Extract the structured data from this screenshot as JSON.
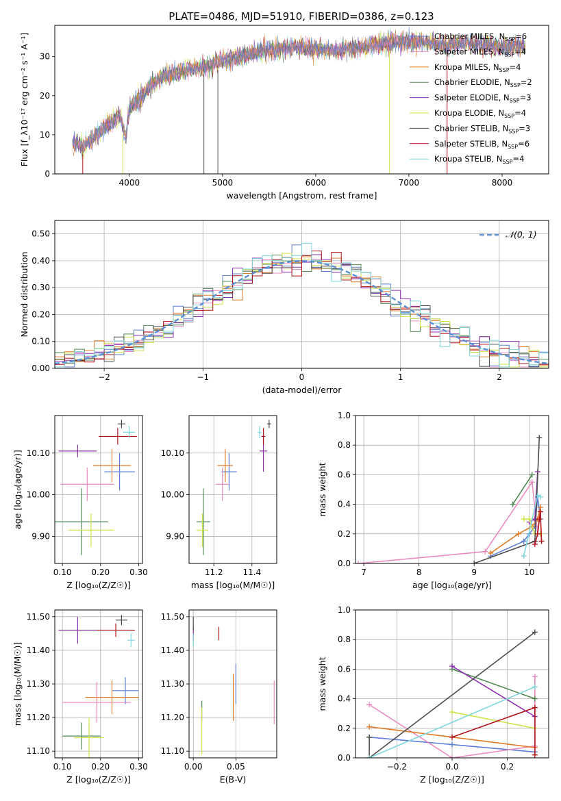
{
  "figure": {
    "title": "PLATE=0486, MJD=51910, FIBERID=0386, z=0.123"
  },
  "colors": {
    "Chabrier MILES": "#5b7fd6",
    "Salpeter MILES": "#e88cc0",
    "Kroupa MILES": "#e07b28",
    "Chabrier ELODIE": "#4f8a52",
    "Salpeter ELODIE": "#8f2fb0",
    "Kroupa ELODIE": "#cde34a",
    "Chabrier STELIB": "#4d4d4d",
    "Salpeter STELIB": "#b0151a",
    "Kroupa STELIB": "#7fd8de",
    "normal_curve": "#5b8fd6"
  },
  "chart_data": [
    {
      "id": "spectrum",
      "type": "line",
      "xlabel": "wavelength [Angstrom, rest frame]",
      "ylabel": "Flux [f_λ10⁻¹⁷ erg cm⁻² s⁻¹ A⁻¹]",
      "xlim": [
        3200,
        8500
      ],
      "ylim": [
        0,
        38
      ],
      "xticks": [
        4000,
        5000,
        6000,
        7000,
        8000
      ],
      "yticks": [
        0,
        10,
        20,
        30
      ],
      "grid": false,
      "legend_position": "right",
      "legend": [
        {
          "name": "Chabrier MILES",
          "nssp": "6"
        },
        {
          "name": "Salpeter MILES",
          "nssp": "4"
        },
        {
          "name": "Kroupa MILES",
          "nssp": "4"
        },
        {
          "name": "Chabrier ELODIE",
          "nssp": "2"
        },
        {
          "name": "Salpeter ELODIE",
          "nssp": "3"
        },
        {
          "name": "Kroupa ELODIE",
          "nssp": "4"
        },
        {
          "name": "Chabrier STELIB",
          "nssp": "3"
        },
        {
          "name": "Salpeter STELIB",
          "nssp": "6"
        },
        {
          "name": "Kroupa STELIB",
          "nssp": "4"
        }
      ],
      "continuum": {
        "x": [
          3390,
          3500,
          3600,
          3700,
          3800,
          3900,
          3960,
          4000,
          4100,
          4200,
          4300,
          4400,
          4500,
          4700,
          4900,
          5000,
          5200,
          5400,
          5600,
          5800,
          6000,
          6200,
          6400,
          6600,
          6800,
          7000,
          7200,
          7400,
          7600,
          7800,
          8000,
          8250
        ],
        "y": [
          8,
          7,
          9,
          11,
          13,
          15,
          9,
          17,
          19,
          22,
          24,
          25,
          26,
          27,
          28,
          29,
          30,
          31.5,
          32,
          32.5,
          32,
          31.5,
          32,
          33,
          33.5,
          34,
          33.5,
          33,
          33.5,
          33,
          32.5,
          33
        ]
      }
    },
    {
      "id": "residuals",
      "type": "bar",
      "xlabel": "(data-model)/error",
      "ylabel": "Normed distribution",
      "xlim": [
        -2.5,
        2.5
      ],
      "ylim": [
        0,
        0.55
      ],
      "xticks": [
        -2,
        -1,
        0,
        1,
        2
      ],
      "yticks": [
        0.0,
        0.1,
        0.2,
        0.3,
        0.4,
        0.5
      ],
      "grid": true,
      "bin_width": 0.1,
      "legend_position": "top-right",
      "legend_label": "𝒩(0, 1)",
      "normal": {
        "mean": 0,
        "sigma": 1
      }
    },
    {
      "id": "age_vs_Z",
      "type": "scatter",
      "xlabel": "Z [log₁₀(Z/Z☉)]",
      "ylabel": "age  [log₁₀(age/yr)]",
      "xlim": [
        0.08,
        0.31
      ],
      "ylim": [
        9.835,
        10.19
      ],
      "xticks": [
        0.1,
        0.2,
        0.3
      ],
      "yticks": [
        9.9,
        10.0,
        10.1
      ],
      "grid": true,
      "points": [
        {
          "model": "Chabrier MILES",
          "x": 0.25,
          "y": 10.055,
          "xerr": 0.04,
          "yerr": 0.045
        },
        {
          "model": "Salpeter MILES",
          "x": 0.165,
          "y": 10.025,
          "xerr": 0.07,
          "yerr": 0.04
        },
        {
          "model": "Kroupa MILES",
          "x": 0.23,
          "y": 10.07,
          "xerr": 0.05,
          "yerr": 0.04
        },
        {
          "model": "Chabrier ELODIE",
          "x": 0.15,
          "y": 9.935,
          "xerr": 0.07,
          "yerr": 0.08
        },
        {
          "model": "Salpeter ELODIE",
          "x": 0.14,
          "y": 10.105,
          "xerr": 0.05,
          "yerr": 0.015
        },
        {
          "model": "Kroupa ELODIE",
          "x": 0.175,
          "y": 9.915,
          "xerr": 0.06,
          "yerr": 0.04
        },
        {
          "model": "Chabrier STELIB",
          "x": 0.255,
          "y": 10.17,
          "xerr": 0.01,
          "yerr": 0.01
        },
        {
          "model": "Salpeter STELIB",
          "x": 0.245,
          "y": 10.14,
          "xerr": 0.05,
          "yerr": 0.02
        },
        {
          "model": "Kroupa STELIB",
          "x": 0.275,
          "y": 10.15,
          "xerr": 0.015,
          "yerr": 0.015
        }
      ]
    },
    {
      "id": "age_vs_mass",
      "type": "scatter",
      "xlabel": "mass [log₁₀(M/M☉)]",
      "ylabel": "",
      "xlim": [
        11.07,
        11.53
      ],
      "ylim": [
        9.835,
        10.19
      ],
      "xticks": [
        11.2,
        11.4
      ],
      "yticks": [
        9.9,
        10.0,
        10.1
      ],
      "grid": true,
      "points": [
        {
          "model": "Chabrier MILES",
          "x": 11.28,
          "y": 10.055,
          "xerr": 0.04,
          "yerr": 0.045
        },
        {
          "model": "Salpeter MILES",
          "x": 11.245,
          "y": 10.025,
          "xerr": 0.035,
          "yerr": 0.04
        },
        {
          "model": "Kroupa MILES",
          "x": 11.26,
          "y": 10.07,
          "xerr": 0.04,
          "yerr": 0.04
        },
        {
          "model": "Chabrier ELODIE",
          "x": 11.145,
          "y": 9.935,
          "xerr": 0.035,
          "yerr": 0.08
        },
        {
          "model": "Salpeter ELODIE",
          "x": 11.46,
          "y": 10.105,
          "xerr": 0.02,
          "yerr": 0.05
        },
        {
          "model": "Kroupa ELODIE",
          "x": 11.14,
          "y": 9.915,
          "xerr": 0.03,
          "yerr": 0.04
        },
        {
          "model": "Chabrier STELIB",
          "x": 11.49,
          "y": 10.17,
          "xerr": 0.01,
          "yerr": 0.01
        },
        {
          "model": "Salpeter STELIB",
          "x": 11.46,
          "y": 10.14,
          "xerr": 0.01,
          "yerr": 0.02
        },
        {
          "model": "Kroupa STELIB",
          "x": 11.44,
          "y": 10.15,
          "xerr": 0.01,
          "yerr": 0.015
        }
      ]
    },
    {
      "id": "weight_vs_age",
      "type": "line",
      "xlabel": "age  [log₁₀(age/yr)]",
      "ylabel": "mass weight",
      "xlim": [
        6.85,
        10.35
      ],
      "ylim": [
        0,
        1
      ],
      "xticks": [
        7,
        8,
        9,
        10
      ],
      "yticks": [
        0.0,
        0.2,
        0.4,
        0.6,
        0.8,
        1.0
      ],
      "grid": true,
      "series": [
        {
          "model": "Chabrier MILES",
          "x": [
            9.3,
            9.9,
            10.0,
            10.1,
            10.15,
            10.2
          ],
          "y": [
            0.05,
            0.15,
            0.2,
            0.25,
            0.45,
            0.3
          ]
        },
        {
          "model": "Salpeter MILES",
          "x": [
            6.9,
            9.2,
            10.05,
            10.15,
            10.2
          ],
          "y": [
            0.0,
            0.08,
            0.55,
            0.2,
            0.35
          ]
        },
        {
          "model": "Kroupa MILES",
          "x": [
            9.3,
            9.8,
            10.05,
            10.15,
            10.2
          ],
          "y": [
            0.07,
            0.2,
            0.25,
            0.3,
            0.38
          ]
        },
        {
          "model": "Chabrier ELODIE",
          "x": [
            9.7,
            10.05
          ],
          "y": [
            0.4,
            0.6
          ]
        },
        {
          "model": "Salpeter ELODIE",
          "x": [
            10.0,
            10.1,
            10.15
          ],
          "y": [
            0.28,
            0.3,
            0.62
          ]
        },
        {
          "model": "Kroupa ELODIE",
          "x": [
            9.9,
            10.0,
            10.1,
            10.2
          ],
          "y": [
            0.3,
            0.3,
            0.2,
            0.2
          ]
        },
        {
          "model": "Chabrier STELIB",
          "x": [
            9.0,
            10.1,
            10.18
          ],
          "y": [
            0.0,
            0.15,
            0.85
          ]
        },
        {
          "model": "Salpeter STELIB",
          "x": [
            10.1,
            10.15,
            10.18,
            10.2,
            10.22
          ],
          "y": [
            0.13,
            0.2,
            0.3,
            0.35,
            0.15
          ]
        },
        {
          "model": "Kroupa STELIB",
          "x": [
            9.9,
            10.15,
            10.2
          ],
          "y": [
            0.05,
            0.46,
            0.45
          ]
        }
      ]
    },
    {
      "id": "mass_vs_Z",
      "type": "scatter",
      "xlabel": "Z [log₁₀(Z/Z☉)]",
      "ylabel": "mass [log₁₀(M/M☉)]",
      "xlim": [
        0.08,
        0.31
      ],
      "ylim": [
        11.08,
        11.52
      ],
      "xticks": [
        0.1,
        0.2,
        0.3
      ],
      "yticks": [
        11.1,
        11.2,
        11.3,
        11.4,
        11.5
      ],
      "grid": true,
      "points": [
        {
          "model": "Chabrier MILES",
          "x": 0.265,
          "y": 11.28,
          "xerr": 0.035,
          "yerr": 0.04
        },
        {
          "model": "Salpeter MILES",
          "x": 0.19,
          "y": 11.245,
          "xerr": 0.09,
          "yerr": 0.06
        },
        {
          "model": "Kroupa MILES",
          "x": 0.23,
          "y": 11.26,
          "xerr": 0.07,
          "yerr": 0.05
        },
        {
          "model": "Chabrier ELODIE",
          "x": 0.15,
          "y": 11.145,
          "xerr": 0.05,
          "yerr": 0.04
        },
        {
          "model": "Salpeter ELODIE",
          "x": 0.14,
          "y": 11.46,
          "xerr": 0.05,
          "yerr": 0.04
        },
        {
          "model": "Kroupa ELODIE",
          "x": 0.17,
          "y": 11.14,
          "xerr": 0.04,
          "yerr": 0.06
        },
        {
          "model": "Chabrier STELIB",
          "x": 0.255,
          "y": 11.49,
          "xerr": 0.015,
          "yerr": 0.015
        },
        {
          "model": "Salpeter STELIB",
          "x": 0.24,
          "y": 11.46,
          "xerr": 0.05,
          "yerr": 0.02
        },
        {
          "model": "Kroupa STELIB",
          "x": 0.28,
          "y": 11.43,
          "xerr": 0.01,
          "yerr": 0.02
        }
      ]
    },
    {
      "id": "mass_vs_EBV",
      "type": "scatter",
      "xlabel": "E(B-V)",
      "ylabel": "",
      "xlim": [
        -0.005,
        0.098
      ],
      "ylim": [
        11.08,
        11.52
      ],
      "xticks": [
        0.0,
        0.05
      ],
      "yticks": [
        11.1,
        11.2,
        11.3,
        11.4,
        11.5
      ],
      "grid": true,
      "points": [
        {
          "model": "Chabrier MILES",
          "x": 0.05,
          "y": 11.3,
          "xerr": 0,
          "yerr": 0.06
        },
        {
          "model": "Salpeter MILES",
          "x": 0.095,
          "y": 11.245,
          "xerr": 0,
          "yerr": 0.065
        },
        {
          "model": "Kroupa MILES",
          "x": 0.047,
          "y": 11.26,
          "xerr": 0,
          "yerr": 0.07
        },
        {
          "model": "Chabrier ELODIE",
          "x": 0.01,
          "y": 11.22,
          "xerr": 0,
          "yerr": 0.03
        },
        {
          "model": "Salpeter ELODIE",
          "x": 0.0,
          "y": 11.45,
          "xerr": 0,
          "yerr": 0.02
        },
        {
          "model": "Kroupa ELODIE",
          "x": 0.01,
          "y": 11.16,
          "xerr": 0,
          "yerr": 0.07
        },
        {
          "model": "Chabrier STELIB",
          "x": 0.0,
          "y": 11.48,
          "xerr": 0,
          "yerr": 0.02
        },
        {
          "model": "Salpeter STELIB",
          "x": 0.03,
          "y": 11.45,
          "xerr": 0,
          "yerr": 0.02
        },
        {
          "model": "Kroupa STELIB",
          "x": 0.0,
          "y": 11.43,
          "xerr": 0,
          "yerr": 0.02
        }
      ]
    },
    {
      "id": "weight_vs_Z",
      "type": "line",
      "xlabel": "Z [log₁₀(Z/Z☉)]",
      "ylabel": "mass weight",
      "xlim": [
        -0.35,
        0.35
      ],
      "ylim": [
        0,
        1
      ],
      "xticks": [
        -0.2,
        0.0,
        0.2
      ],
      "yticks": [
        0.0,
        0.2,
        0.4,
        0.6,
        0.8,
        1.0
      ],
      "grid": true,
      "series": [
        {
          "model": "Chabrier MILES",
          "x": [
            -0.3,
            0.0,
            0.3
          ],
          "y": [
            0.14,
            0.09,
            0.04
          ]
        },
        {
          "model": "Salpeter MILES",
          "x": [
            -0.3,
            0.0,
            0.3,
            0.3
          ],
          "y": [
            0.36,
            0.0,
            0.08,
            0.55
          ]
        },
        {
          "model": "Kroupa MILES",
          "x": [
            -0.3,
            0.3
          ],
          "y": [
            0.21,
            0.07
          ]
        },
        {
          "model": "Chabrier ELODIE",
          "x": [
            0.0,
            0.3
          ],
          "y": [
            0.6,
            0.4
          ]
        },
        {
          "model": "Salpeter ELODIE",
          "x": [
            0.0,
            0.3
          ],
          "y": [
            0.62,
            0.28
          ]
        },
        {
          "model": "Kroupa ELODIE",
          "x": [
            0.0,
            0.3
          ],
          "y": [
            0.31,
            0.2
          ]
        },
        {
          "model": "Chabrier STELIB",
          "x": [
            -0.3,
            -0.3,
            0.3
          ],
          "y": [
            0.14,
            0.0,
            0.85
          ]
        },
        {
          "model": "Salpeter STELIB",
          "x": [
            0.0,
            0.3,
            0.3
          ],
          "y": [
            0.14,
            0.34,
            0.02
          ]
        },
        {
          "model": "Kroupa STELIB",
          "x": [
            -0.3,
            0.3
          ],
          "y": [
            0.0,
            0.48
          ]
        }
      ]
    }
  ]
}
